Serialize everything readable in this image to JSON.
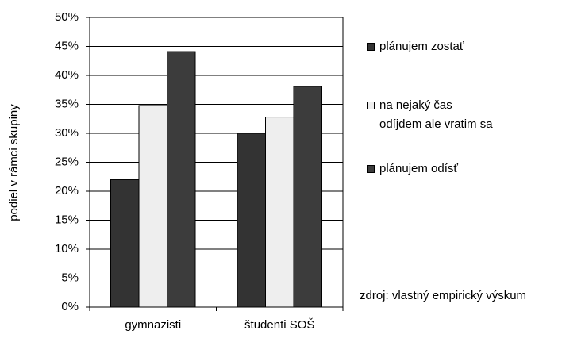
{
  "chart_data": {
    "type": "bar",
    "categories": [
      "gymnazisti",
      "študenti SOŠ"
    ],
    "series": [
      {
        "name": "plánujem zostať",
        "color": "#333333",
        "values": [
          22,
          30
        ]
      },
      {
        "name": "na nejaký čas\nodíjdem ale vratim sa",
        "color": "#eeeeee",
        "values": [
          34.8,
          32.8
        ]
      },
      {
        "name": "plánujem odísť",
        "color": "#3c3c3c",
        "values": [
          44.1,
          38.1
        ]
      }
    ],
    "ylim": [
      0,
      50
    ],
    "yticks": [
      {
        "value": 0,
        "label": "0%"
      },
      {
        "value": 5,
        "label": "5%"
      },
      {
        "value": 10,
        "label": "10%"
      },
      {
        "value": 15,
        "label": "15%"
      },
      {
        "value": 20,
        "label": "20%"
      },
      {
        "value": 25,
        "label": "25%"
      },
      {
        "value": 30,
        "label": "30%"
      },
      {
        "value": 35,
        "label": "35%"
      },
      {
        "value": 40,
        "label": "40%"
      },
      {
        "value": 45,
        "label": "45%"
      },
      {
        "value": 50,
        "label": "50%"
      }
    ],
    "y_label": "podiel v rámci skupiny",
    "annotation": "zdroj: vlastný empirický výskum",
    "grid": true,
    "legend": "right"
  }
}
